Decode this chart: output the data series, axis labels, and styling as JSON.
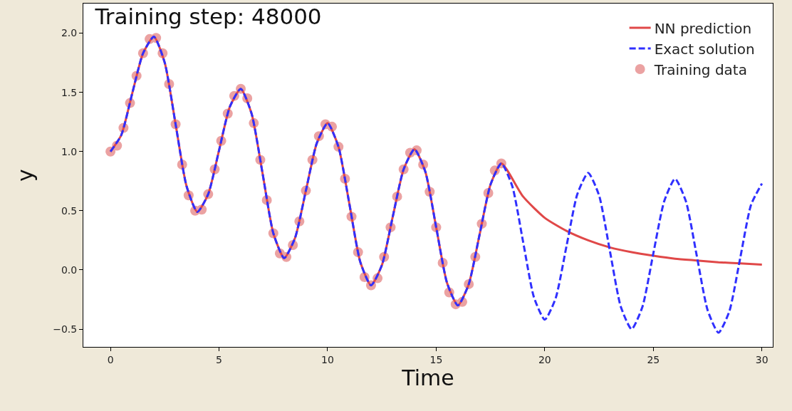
{
  "chart_data": {
    "type": "line",
    "title": "Training step: 48000",
    "xlabel": "Time",
    "ylabel": "y",
    "xlim": [
      -1.25,
      30.5
    ],
    "ylim": [
      -0.65,
      2.25
    ],
    "xticks": [
      0,
      5,
      10,
      15,
      20,
      25,
      30
    ],
    "yticks": [
      {
        "value": -0.5,
        "label": "−0.5"
      },
      {
        "value": 0,
        "label": "0.0"
      },
      {
        "value": 0.5,
        "label": "0.5"
      },
      {
        "value": 1,
        "label": "1.0"
      },
      {
        "value": 1.5,
        "label": "1.5"
      },
      {
        "value": 2,
        "label": "2.0"
      }
    ],
    "grid": false,
    "legend": "top right",
    "series": [
      {
        "name": "NN prediction",
        "line_style": "solid",
        "color": "#e04848",
        "x": [
          0,
          0.5,
          1,
          1.5,
          2,
          2.5,
          3,
          3.5,
          4,
          4.5,
          5,
          5.5,
          6,
          6.5,
          7,
          7.5,
          8,
          8.5,
          9,
          9.5,
          10,
          10.5,
          11,
          11.5,
          12,
          12.5,
          13,
          13.5,
          14,
          14.5,
          15,
          15.5,
          16,
          16.5,
          17,
          17.5,
          18,
          19,
          20,
          21,
          22,
          23,
          24,
          25,
          26,
          27,
          28,
          29,
          30
        ],
        "values": [
          1.0,
          1.14,
          1.49,
          1.83,
          1.97,
          1.75,
          1.23,
          0.71,
          0.49,
          0.64,
          1.01,
          1.38,
          1.53,
          1.32,
          0.82,
          0.31,
          0.1,
          0.27,
          0.67,
          1.07,
          1.24,
          1.04,
          0.56,
          0.07,
          -0.13,
          0.04,
          0.45,
          0.85,
          1.02,
          0.83,
          0.36,
          -0.11,
          -0.3,
          -0.12,
          0.3,
          0.72,
          0.9,
          0.62,
          0.44,
          0.33,
          0.25,
          0.19,
          0.15,
          0.12,
          0.095,
          0.08,
          0.065,
          0.055,
          0.045
        ]
      },
      {
        "name": "Exact solution",
        "line_style": "dashed",
        "color": "#3030ff",
        "x": [
          0,
          0.5,
          1,
          1.5,
          2,
          2.5,
          3,
          3.5,
          4,
          4.5,
          5,
          5.5,
          6,
          6.5,
          7,
          7.5,
          8,
          8.5,
          9,
          9.5,
          10,
          10.5,
          11,
          11.5,
          12,
          12.5,
          13,
          13.5,
          14,
          14.5,
          15,
          15.5,
          16,
          16.5,
          17,
          17.5,
          18,
          18.5,
          19,
          19.5,
          20,
          20.5,
          21,
          21.5,
          22,
          22.5,
          23,
          23.5,
          24,
          24.5,
          25,
          25.5,
          26,
          26.5,
          27,
          27.5,
          28,
          28.5,
          29,
          29.5,
          30
        ],
        "values": [
          1.0,
          1.14,
          1.49,
          1.83,
          1.97,
          1.75,
          1.23,
          0.71,
          0.49,
          0.64,
          1.01,
          1.38,
          1.53,
          1.32,
          0.82,
          0.31,
          0.1,
          0.27,
          0.67,
          1.07,
          1.24,
          1.04,
          0.56,
          0.07,
          -0.13,
          0.04,
          0.45,
          0.85,
          1.02,
          0.83,
          0.36,
          -0.11,
          -0.3,
          -0.12,
          0.3,
          0.72,
          0.9,
          0.71,
          0.24,
          -0.23,
          -0.42,
          -0.24,
          0.2,
          0.64,
          0.82,
          0.63,
          0.16,
          -0.31,
          -0.5,
          -0.31,
          0.14,
          0.58,
          0.77,
          0.58,
          0.12,
          -0.34,
          -0.53,
          -0.35,
          0.1,
          0.55,
          0.73
        ]
      },
      {
        "name": "Training data",
        "type": "scatter",
        "marker": "circle",
        "color": "#eba2a2",
        "x": [
          0,
          0.3,
          0.6,
          0.9,
          1.2,
          1.5,
          1.8,
          2.1,
          2.4,
          2.7,
          3,
          3.3,
          3.6,
          3.9,
          4.2,
          4.5,
          4.8,
          5.1,
          5.4,
          5.7,
          6,
          6.3,
          6.6,
          6.9,
          7.2,
          7.5,
          7.8,
          8.1,
          8.4,
          8.7,
          9,
          9.3,
          9.6,
          9.9,
          10.2,
          10.5,
          10.8,
          11.1,
          11.4,
          11.7,
          12,
          12.3,
          12.6,
          12.9,
          13.2,
          13.5,
          13.8,
          14.1,
          14.4,
          14.7,
          15,
          15.3,
          15.6,
          15.9,
          16.2,
          16.5,
          16.8,
          17.1,
          17.4,
          17.7,
          18
        ],
        "values": [
          1.0,
          1.05,
          1.2,
          1.41,
          1.64,
          1.83,
          1.95,
          1.96,
          1.83,
          1.57,
          1.23,
          0.89,
          0.63,
          0.5,
          0.51,
          0.64,
          0.85,
          1.09,
          1.32,
          1.47,
          1.53,
          1.45,
          1.24,
          0.93,
          0.59,
          0.31,
          0.14,
          0.11,
          0.21,
          0.41,
          0.67,
          0.93,
          1.13,
          1.23,
          1.21,
          1.04,
          0.77,
          0.45,
          0.15,
          -0.06,
          -0.13,
          -0.07,
          0.11,
          0.36,
          0.62,
          0.85,
          0.99,
          1.01,
          0.89,
          0.66,
          0.36,
          0.06,
          -0.19,
          -0.29,
          -0.27,
          -0.12,
          0.11,
          0.39,
          0.65,
          0.84,
          0.9
        ]
      }
    ]
  }
}
